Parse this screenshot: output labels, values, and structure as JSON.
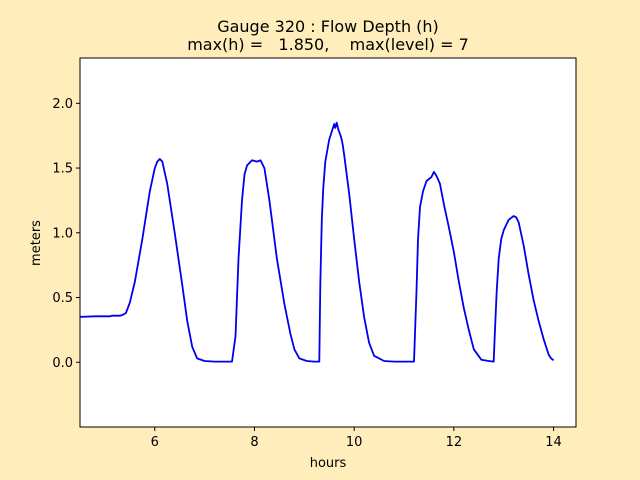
{
  "chart_data": {
    "type": "line",
    "title_line1": "Gauge 320 : Flow Depth (h)",
    "title_line2": "max(h) =   1.850,    max(level) = 7",
    "xlabel": "hours",
    "ylabel": "meters",
    "xlim": [
      4.5,
      14.45
    ],
    "ylim": [
      -0.5,
      2.35
    ],
    "xticks": [
      6,
      8,
      10,
      12,
      14
    ],
    "xtick_labels": [
      "6",
      "8",
      "10",
      "12",
      "14"
    ],
    "yticks": [
      0.0,
      0.5,
      1.0,
      1.5,
      2.0
    ],
    "ytick_labels": [
      "0.0",
      "0.5",
      "1.0",
      "1.5",
      "2.0"
    ],
    "line_color": "#0000ee",
    "plot_background": "#ffffff",
    "figure_background": "#ffeebb",
    "series": [
      {
        "x": [
          4.5,
          4.8,
          5.0,
          5.1,
          5.15,
          5.2,
          5.3,
          5.35,
          5.42,
          5.5,
          5.6,
          5.75,
          5.9,
          6.0,
          6.05,
          6.1,
          6.15,
          6.25,
          6.4,
          6.55,
          6.65,
          6.75,
          6.85,
          7.0,
          7.2,
          7.4,
          7.55,
          7.62,
          7.68,
          7.75,
          7.8,
          7.85,
          7.9,
          7.95,
          8.05,
          8.12,
          8.2,
          8.3,
          8.45,
          8.6,
          8.72,
          8.8,
          8.9,
          9.05,
          9.2,
          9.3,
          9.32,
          9.35,
          9.38,
          9.42,
          9.5,
          9.6,
          9.62,
          9.65,
          9.68,
          9.72,
          9.75,
          9.77,
          9.8,
          9.9,
          10.0,
          10.1,
          10.2,
          10.3,
          10.4,
          10.6,
          10.8,
          11.0,
          11.2,
          11.25,
          11.28,
          11.32,
          11.38,
          11.45,
          11.55,
          11.6,
          11.65,
          11.72,
          11.8,
          11.9,
          12.0,
          12.1,
          12.2,
          12.3,
          12.4,
          12.55,
          12.7,
          12.8,
          12.82,
          12.86,
          12.9,
          12.95,
          13.0,
          13.1,
          13.2,
          13.25,
          13.3,
          13.4,
          13.5,
          13.6,
          13.7,
          13.8,
          13.9,
          13.95,
          14.0
        ],
        "y": [
          0.35,
          0.355,
          0.355,
          0.355,
          0.36,
          0.36,
          0.36,
          0.365,
          0.38,
          0.46,
          0.62,
          0.95,
          1.32,
          1.5,
          1.55,
          1.57,
          1.55,
          1.38,
          1.0,
          0.6,
          0.32,
          0.12,
          0.03,
          0.01,
          0.005,
          0.005,
          0.005,
          0.2,
          0.8,
          1.25,
          1.45,
          1.52,
          1.54,
          1.56,
          1.55,
          1.56,
          1.5,
          1.25,
          0.8,
          0.45,
          0.22,
          0.1,
          0.03,
          0.01,
          0.005,
          0.005,
          0.6,
          1.1,
          1.35,
          1.55,
          1.72,
          1.84,
          1.81,
          1.85,
          1.8,
          1.76,
          1.72,
          1.68,
          1.6,
          1.3,
          0.95,
          0.62,
          0.35,
          0.15,
          0.05,
          0.01,
          0.005,
          0.005,
          0.005,
          0.55,
          0.95,
          1.2,
          1.32,
          1.4,
          1.43,
          1.47,
          1.44,
          1.38,
          1.22,
          1.04,
          0.85,
          0.62,
          0.42,
          0.25,
          0.1,
          0.02,
          0.01,
          0.005,
          0.2,
          0.55,
          0.8,
          0.95,
          1.02,
          1.1,
          1.13,
          1.12,
          1.08,
          0.9,
          0.68,
          0.48,
          0.32,
          0.18,
          0.06,
          0.03,
          0.015
        ]
      }
    ]
  }
}
